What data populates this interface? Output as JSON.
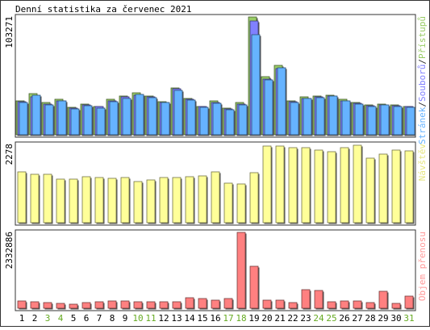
{
  "chart_data": {
    "type": "bar",
    "title": "Denní statistika za červenec 2021",
    "categories": [
      "1",
      "2",
      "3",
      "4",
      "5",
      "6",
      "7",
      "8",
      "9",
      "10",
      "11",
      "12",
      "13",
      "14",
      "15",
      "16",
      "17",
      "18",
      "19",
      "20",
      "21",
      "22",
      "23",
      "24",
      "25",
      "26",
      "27",
      "28",
      "29",
      "30",
      "31"
    ],
    "weekend_days": [
      "3",
      "4",
      "10",
      "11",
      "17",
      "18",
      "24",
      "25",
      "31"
    ],
    "panels": [
      {
        "id": "hits",
        "ymax_label": "103271",
        "ymax": 103271,
        "legend": [
          {
            "text": "Stránek",
            "color": "#66b3ff"
          },
          {
            "text": "/",
            "color": "#333333"
          },
          {
            "text": "Souborů",
            "color": "#8080ff"
          },
          {
            "text": "/",
            "color": "#333333"
          },
          {
            "text": "Přístupů",
            "color": "#99cc66"
          }
        ],
        "series": [
          {
            "name": "Přístupů",
            "color": "#99cc66",
            "values": [
              30000,
              36000,
              28000,
              31000,
              24000,
              27000,
              25000,
              31000,
              34000,
              37000,
              34000,
              29000,
              41000,
              32000,
              25000,
              30000,
              23000,
              28000,
              103271,
              51000,
              61000,
              30000,
              33000,
              34000,
              35000,
              31000,
              28000,
              26000,
              27000,
              26000,
              25000
            ]
          },
          {
            "name": "Souborů",
            "color": "#8080ff",
            "values": [
              29000,
              33000,
              27000,
              30000,
              23500,
              26000,
              24500,
              30000,
              33000,
              35000,
              33000,
              28000,
              40000,
              31000,
              24500,
              28000,
              22500,
              27000,
              100000,
              49000,
              58000,
              29000,
              32000,
              33000,
              34000,
              30000,
              27500,
              25500,
              26500,
              25500,
              24500
            ]
          },
          {
            "name": "Stránek",
            "color": "#66b3ff",
            "values": [
              28000,
              35000,
              26500,
              29500,
              22500,
              25500,
              23500,
              29000,
              32000,
              35500,
              32500,
              28000,
              39000,
              30500,
              24000,
              27500,
              22000,
              26500,
              88000,
              48000,
              59000,
              28500,
              31500,
              32500,
              34000,
              29500,
              27000,
              25000,
              26000,
              25000,
              24000
            ]
          }
        ]
      },
      {
        "id": "visits",
        "ymax_label": "2278",
        "ymax": 2278,
        "legend": [
          {
            "text": "Návštěv",
            "color": "#e6e680"
          }
        ],
        "series": [
          {
            "name": "Návštěv",
            "color": "#ffff99",
            "values": [
              1470,
              1420,
              1420,
              1260,
              1270,
              1330,
              1320,
              1290,
              1320,
              1200,
              1240,
              1310,
              1320,
              1330,
              1360,
              1470,
              1160,
              1130,
              1460,
              2220,
              2240,
              2180,
              2180,
              2110,
              2070,
              2190,
              2250,
              1870,
              1990,
              2120,
              2080
            ]
          }
        ]
      },
      {
        "id": "kbytes",
        "ymax_label": "2332886",
        "ymax": 2332886,
        "legend": [
          {
            "text": "Objem přenosu",
            "color": "#ff9999"
          }
        ],
        "series": [
          {
            "name": "Objem přenosu",
            "color": "#ff8080",
            "values": [
              230000,
              200000,
              180000,
              150000,
              120000,
              180000,
              200000,
              220000,
              220000,
              210000,
              190000,
              200000,
              200000,
              330000,
              290000,
              260000,
              290000,
              2332886,
              1280000,
              240000,
              250000,
              180000,
              580000,
              540000,
              210000,
              220000,
              230000,
              180000,
              530000,
              150000,
              360000
            ]
          }
        ]
      }
    ]
  }
}
